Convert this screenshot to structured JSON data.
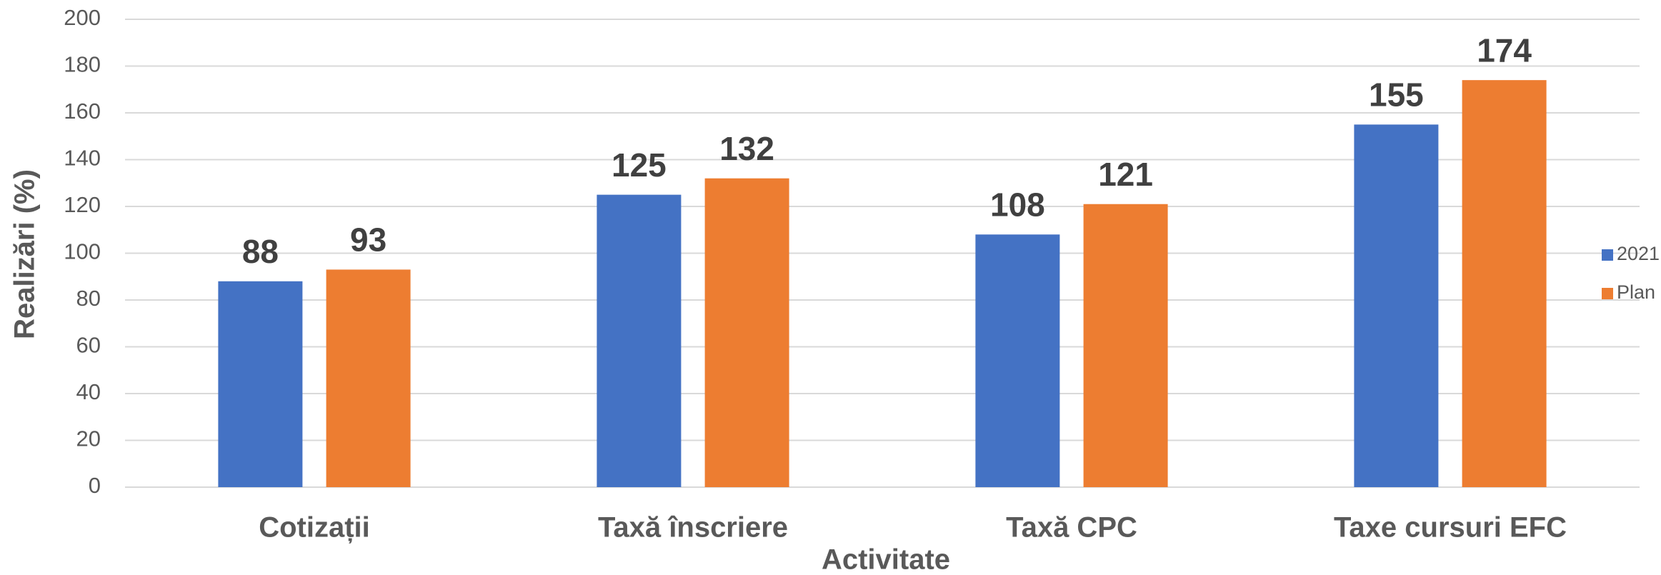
{
  "chart_data": {
    "type": "bar",
    "x_label": "Activitate",
    "y_label": "Realizări (%)",
    "categories": [
      "Cotizații",
      "Taxă înscriere",
      "Taxă CPC",
      "Taxe cursuri EFC"
    ],
    "series": [
      {
        "name": "2021",
        "color": "#4472c4",
        "values": [
          88,
          125,
          108,
          155
        ]
      },
      {
        "name": "Plan",
        "color": "#ed7d31",
        "values": [
          93,
          132,
          121,
          174
        ]
      }
    ],
    "ylim": [
      0,
      200
    ],
    "yticks": [
      0,
      20,
      40,
      60,
      80,
      100,
      120,
      140,
      160,
      180,
      200
    ],
    "grid": true,
    "legend": "right"
  }
}
